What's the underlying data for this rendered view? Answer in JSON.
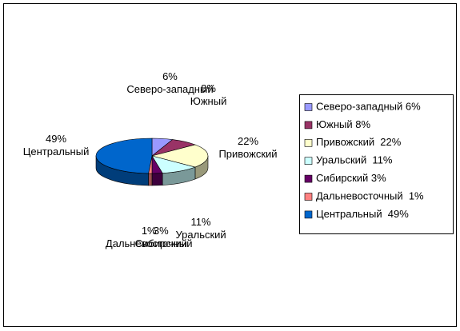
{
  "chart_data": {
    "type": "pie3d",
    "categories": [
      "Северо-западный",
      "Южный",
      "Привожский",
      "Уральский",
      "Сибирский",
      "Дальневосточный",
      "Центральный"
    ],
    "values": [
      6,
      8,
      22,
      11,
      3,
      1,
      49
    ],
    "value_labels": [
      "6%",
      "8%",
      "22%",
      "11%",
      "3%",
      "1%",
      "49%"
    ],
    "colors": [
      "#9999ff",
      "#993366",
      "#ffffcc",
      "#ccffff",
      "#660066",
      "#ff8080",
      "#0066cc"
    ],
    "legend_labels": [
      "Северо-западный 6%",
      "Южный 8%",
      "Привожский  22%",
      "Уральский  11%",
      "Сибирский 3%",
      "Дальневосточный  1%",
      "Центральный  49%"
    ],
    "legend": "right"
  }
}
